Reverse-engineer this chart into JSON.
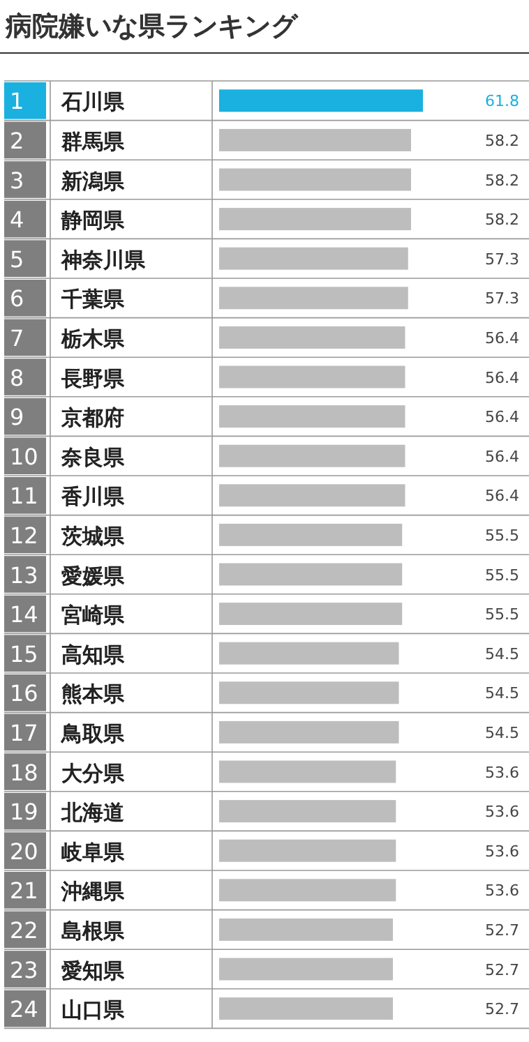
{
  "chart_data": {
    "type": "bar",
    "orientation": "horizontal",
    "title": "病院嫌いな県ランキング",
    "categories": [
      "1 石川県",
      "2 群馬県",
      "3 新潟県",
      "4 静岡県",
      "5 神奈川県",
      "6 千葉県",
      "7 栃木県",
      "8 長野県",
      "9 京都府",
      "10 奈良県",
      "11 香川県",
      "12 茨城県",
      "13 愛媛県",
      "14 宮崎県",
      "15 高知県",
      "16 熊本県",
      "17 鳥取県",
      "18 大分県",
      "19 北海道",
      "20 岐阜県",
      "21 沖縄県",
      "22 島根県",
      "23 愛知県",
      "24 山口県"
    ],
    "values": [
      61.8,
      58.2,
      58.2,
      58.2,
      57.3,
      57.3,
      56.4,
      56.4,
      56.4,
      56.4,
      56.4,
      55.5,
      55.5,
      55.5,
      54.5,
      54.5,
      54.5,
      53.6,
      53.6,
      53.6,
      53.6,
      52.7,
      52.7,
      52.7
    ],
    "colors": [
      "#1ab0e0",
      "#bdbdbd",
      "#bdbdbd",
      "#bdbdbd",
      "#bdbdbd",
      "#bdbdbd",
      "#bdbdbd",
      "#bdbdbd",
      "#bdbdbd",
      "#bdbdbd",
      "#bdbdbd",
      "#bdbdbd",
      "#bdbdbd",
      "#bdbdbd",
      "#bdbdbd",
      "#bdbdbd",
      "#bdbdbd",
      "#bdbdbd",
      "#bdbdbd",
      "#bdbdbd",
      "#bdbdbd",
      "#bdbdbd",
      "#bdbdbd",
      "#bdbdbd"
    ],
    "data_labels": true
  }
}
